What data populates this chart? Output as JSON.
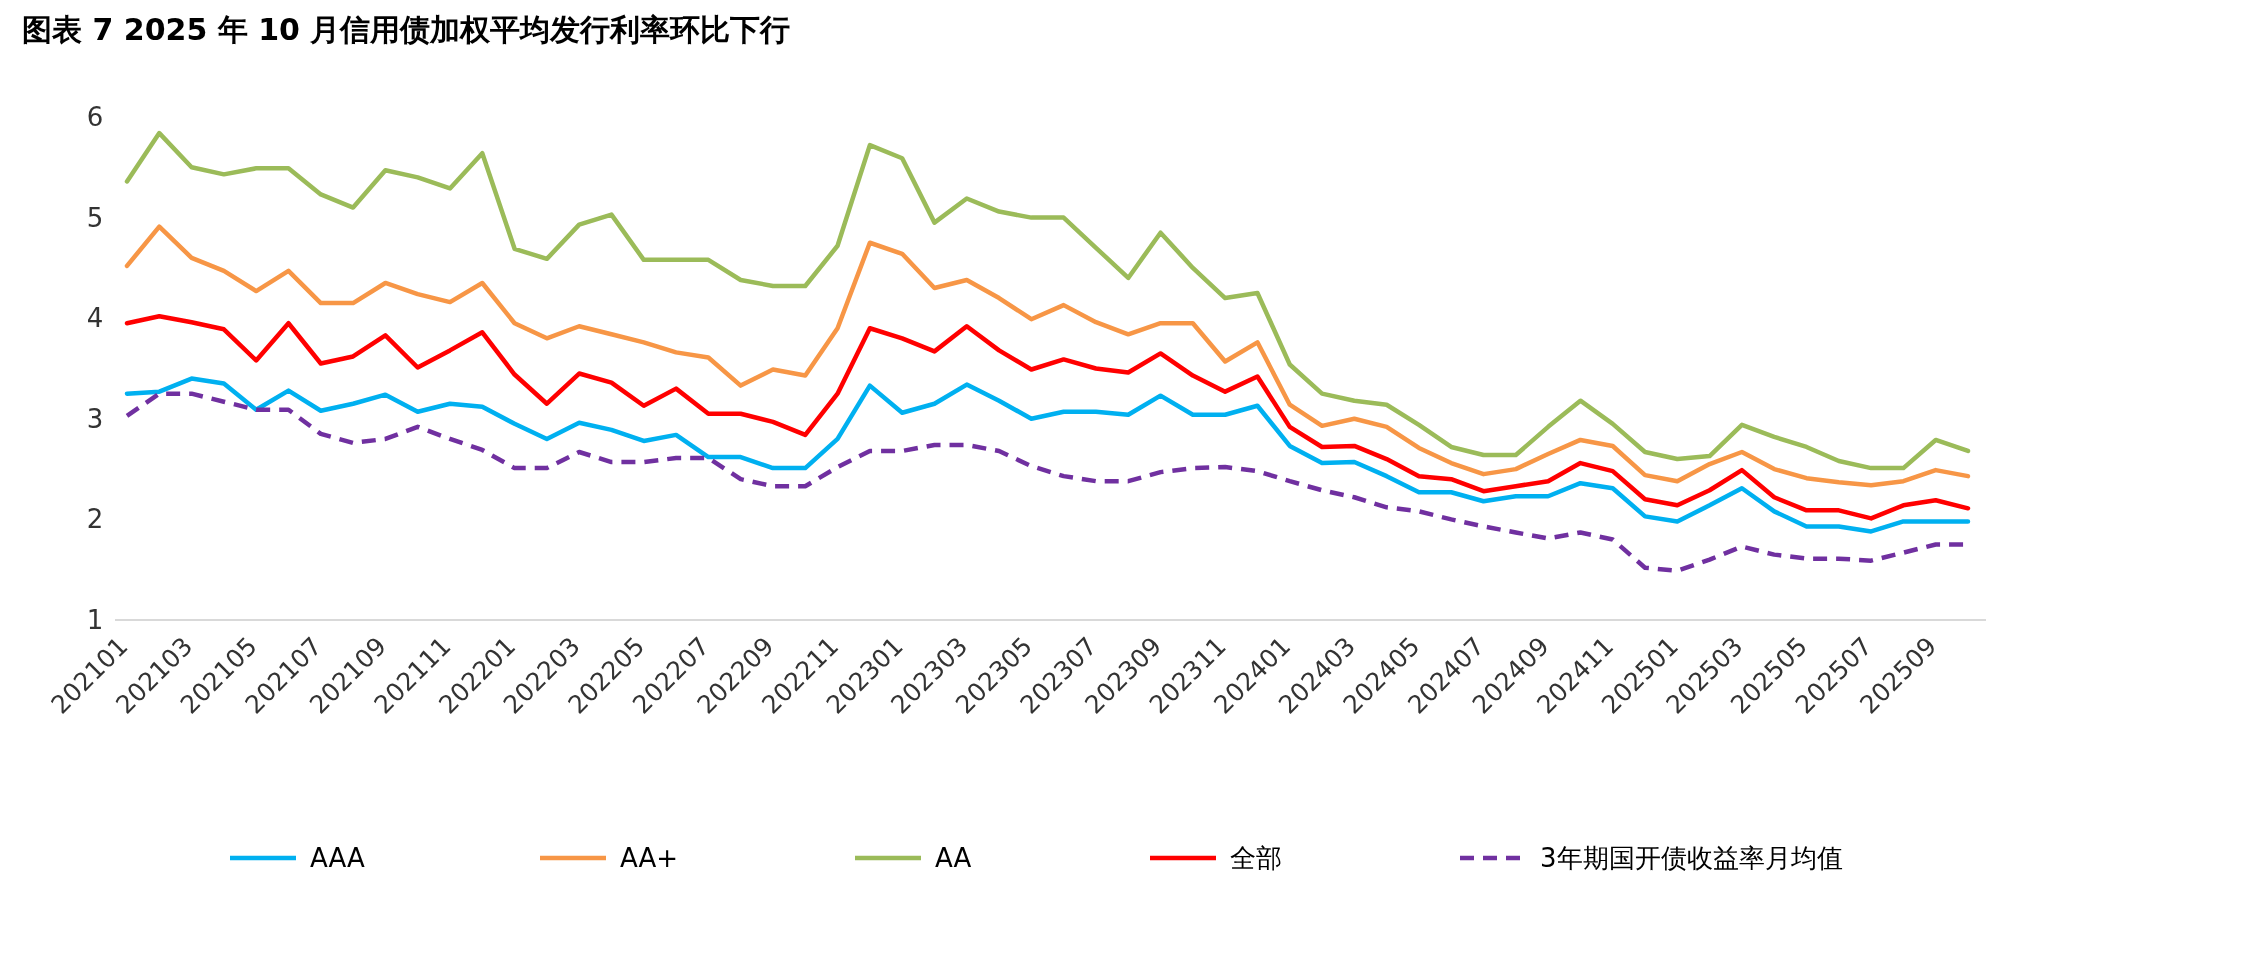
{
  "chart_data": {
    "type": "line",
    "title": "图表 7   2025 年 10 月信用债加权平均发行利率环比下行",
    "categories": [
      "202101",
      null,
      "202103",
      null,
      "202105",
      null,
      "202107",
      null,
      "202109",
      null,
      "202111",
      null,
      "202201",
      null,
      "202203",
      null,
      "202205",
      null,
      "202207",
      null,
      "202209",
      null,
      "202211",
      null,
      "202301",
      null,
      "202303",
      null,
      "202305",
      null,
      "202307",
      null,
      "202309",
      null,
      "202311",
      null,
      "202401",
      null,
      "202403",
      null,
      "202405",
      null,
      "202407",
      null,
      "202409",
      null,
      "202411",
      null,
      "202501",
      null,
      "202503",
      null,
      "202505",
      null,
      "202507",
      null,
      "202509",
      null
    ],
    "ylim": [
      1,
      6
    ],
    "yticks": [
      1,
      2,
      3,
      4,
      5,
      6
    ],
    "grid": false,
    "legend": "bottom",
    "line_style": "solid",
    "marker": "none",
    "series": [
      {
        "name": "AAA",
        "color": "#00b0f0",
        "values": [
          3.25,
          3.27,
          3.4,
          3.35,
          3.09,
          3.28,
          3.08,
          3.15,
          3.24,
          3.07,
          3.15,
          3.12,
          2.95,
          2.8,
          2.96,
          2.89,
          2.78,
          2.84,
          2.62,
          2.62,
          2.51,
          2.51,
          2.8,
          3.33,
          3.06,
          3.15,
          3.34,
          3.18,
          3.0,
          3.07,
          3.07,
          3.04,
          3.23,
          3.04,
          3.04,
          3.13,
          2.73,
          2.56,
          2.57,
          2.43,
          2.27,
          2.27,
          2.18,
          2.23,
          2.23,
          2.36,
          2.31,
          2.03,
          1.98,
          2.14,
          2.31,
          2.08,
          1.93,
          1.93,
          1.88,
          1.98,
          1.98,
          1.98
        ]
      },
      {
        "name": "AA+",
        "color": "#f79646",
        "values": [
          4.52,
          4.91,
          4.6,
          4.47,
          4.27,
          4.47,
          4.15,
          4.15,
          4.35,
          4.24,
          4.16,
          4.35,
          3.95,
          3.8,
          3.92,
          3.84,
          3.76,
          3.66,
          3.61,
          3.33,
          3.49,
          3.43,
          3.9,
          4.75,
          4.64,
          4.3,
          4.38,
          4.2,
          3.99,
          4.13,
          3.96,
          3.84,
          3.95,
          3.95,
          3.57,
          3.76,
          3.14,
          2.93,
          3.0,
          2.92,
          2.71,
          2.56,
          2.45,
          2.5,
          2.65,
          2.79,
          2.73,
          2.44,
          2.38,
          2.55,
          2.67,
          2.5,
          2.41,
          2.37,
          2.34,
          2.38,
          2.49,
          2.43
        ]
      },
      {
        "name": "AA",
        "color": "#9bbb59",
        "values": [
          5.36,
          5.84,
          5.5,
          5.43,
          5.49,
          5.49,
          5.23,
          5.1,
          5.47,
          5.4,
          5.29,
          5.64,
          4.69,
          4.59,
          4.93,
          5.03,
          4.58,
          4.58,
          4.58,
          4.38,
          4.32,
          4.32,
          4.72,
          5.72,
          5.59,
          4.95,
          5.19,
          5.06,
          5.0,
          5.0,
          4.7,
          4.4,
          4.85,
          4.5,
          4.2,
          4.25,
          3.54,
          3.25,
          3.18,
          3.14,
          2.94,
          2.72,
          2.64,
          2.64,
          2.92,
          3.18,
          2.95,
          2.67,
          2.6,
          2.63,
          2.94,
          2.82,
          2.72,
          2.58,
          2.51,
          2.51,
          2.79,
          2.68
        ]
      },
      {
        "name": "全部",
        "color": "#ff0000",
        "values": [
          3.95,
          4.02,
          3.96,
          3.89,
          3.58,
          3.95,
          3.55,
          3.62,
          3.83,
          3.51,
          3.68,
          3.86,
          3.44,
          3.15,
          3.45,
          3.36,
          3.13,
          3.3,
          3.05,
          3.05,
          2.97,
          2.84,
          3.25,
          3.9,
          3.8,
          3.67,
          3.92,
          3.68,
          3.49,
          3.59,
          3.5,
          3.46,
          3.65,
          3.43,
          3.27,
          3.42,
          2.92,
          2.72,
          2.73,
          2.6,
          2.43,
          2.4,
          2.28,
          2.33,
          2.38,
          2.56,
          2.48,
          2.2,
          2.14,
          2.29,
          2.49,
          2.22,
          2.09,
          2.09,
          2.01,
          2.14,
          2.19,
          2.11
        ]
      },
      {
        "name": "3年期国开债收益率月均值",
        "color": "#7030a0",
        "line_style": "dashed",
        "values": [
          3.03,
          3.25,
          3.25,
          3.17,
          3.09,
          3.09,
          2.85,
          2.76,
          2.8,
          2.92,
          2.8,
          2.69,
          2.51,
          2.51,
          2.67,
          2.57,
          2.57,
          2.61,
          2.61,
          2.4,
          2.33,
          2.33,
          2.52,
          2.68,
          2.68,
          2.74,
          2.74,
          2.68,
          2.53,
          2.43,
          2.38,
          2.38,
          2.47,
          2.51,
          2.52,
          2.48,
          2.38,
          2.29,
          2.22,
          2.12,
          2.08,
          2.0,
          1.93,
          1.87,
          1.81,
          1.87,
          1.8,
          1.52,
          1.49,
          1.6,
          1.73,
          1.65,
          1.61,
          1.61,
          1.59,
          1.67,
          1.75,
          1.75
        ]
      }
    ]
  }
}
